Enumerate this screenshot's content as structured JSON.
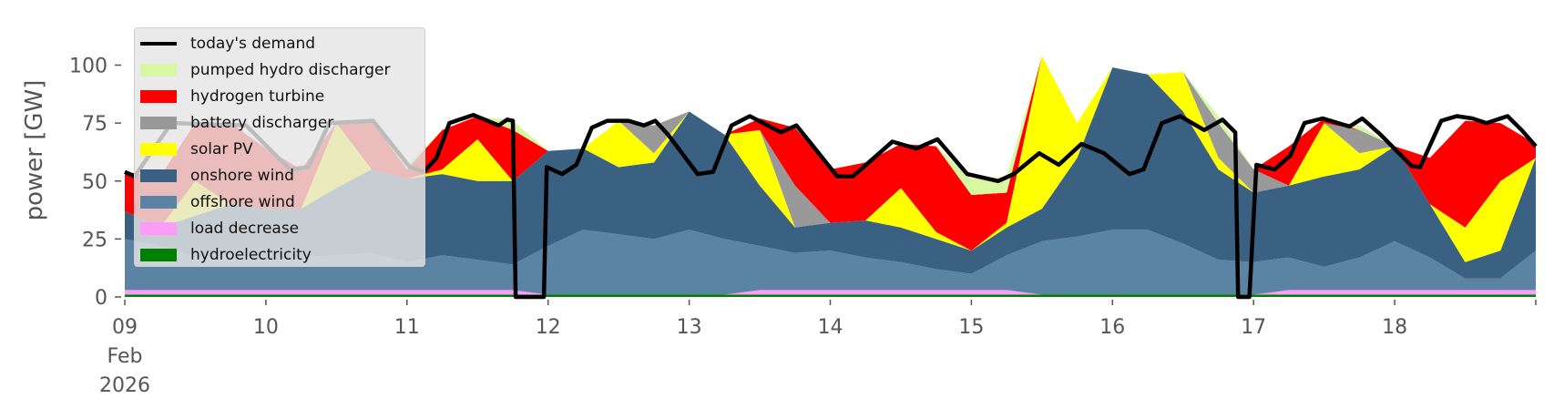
{
  "chart_data": {
    "type": "area",
    "stacked": true,
    "ylabel": "power [GW]",
    "xlabel": "",
    "xlim": [
      9,
      19
    ],
    "ylim": [
      0,
      116
    ],
    "yticks": [
      0,
      25,
      50,
      75,
      100
    ],
    "xticks": [
      {
        "value": 9,
        "label": "09",
        "sub1": "Feb",
        "sub2": "2026"
      },
      {
        "value": 10,
        "label": "10"
      },
      {
        "value": 11,
        "label": "11"
      },
      {
        "value": 12,
        "label": "12"
      },
      {
        "value": 13,
        "label": "13"
      },
      {
        "value": 14,
        "label": "14"
      },
      {
        "value": 15,
        "label": "15"
      },
      {
        "value": 16,
        "label": "16"
      },
      {
        "value": 17,
        "label": "17"
      },
      {
        "value": 18,
        "label": "18"
      }
    ],
    "legend_position": "top-left",
    "x": [
      9,
      9.25,
      9.5,
      9.75,
      10,
      10.25,
      10.5,
      10.75,
      11,
      11.25,
      11.5,
      11.75,
      12,
      12.25,
      12.5,
      12.75,
      13,
      13.25,
      13.5,
      13.75,
      14,
      14.25,
      14.5,
      14.75,
      15,
      15.25,
      15.5,
      15.75,
      16,
      16.25,
      16.5,
      16.75,
      17,
      17.25,
      17.5,
      17.75,
      18,
      18.25,
      18.5,
      18.75,
      19
    ],
    "series": [
      {
        "name": "hydroelectricity",
        "color": "#008000",
        "values": [
          1,
          1,
          1,
          1,
          1,
          1,
          1,
          1,
          1,
          1,
          1,
          1,
          1,
          1,
          1,
          1,
          1,
          1,
          1,
          1,
          1,
          1,
          1,
          1,
          1,
          1,
          1,
          1,
          1,
          1,
          1,
          1,
          1,
          1,
          1,
          1,
          1,
          1,
          1,
          1,
          1
        ]
      },
      {
        "name": "load decrease",
        "color": "#fb9cf7",
        "values": [
          2,
          2,
          2,
          2,
          2,
          2,
          2,
          2,
          2,
          2,
          2,
          2,
          0,
          0,
          0,
          0,
          0,
          0,
          2,
          2,
          2,
          2,
          2,
          2,
          2,
          2,
          0,
          0,
          0,
          0,
          0,
          0,
          0,
          2,
          2,
          2,
          2,
          2,
          2,
          2,
          2
        ]
      },
      {
        "name": "offshore wind",
        "color": "#5b83a4",
        "values": [
          22,
          19,
          14,
          15,
          13,
          14,
          15,
          16,
          12,
          15,
          13,
          11,
          21,
          28,
          26,
          24,
          28,
          24,
          19,
          16,
          17,
          14,
          12,
          9,
          7,
          15,
          23,
          25,
          28,
          28,
          22,
          15,
          14,
          14,
          10,
          14,
          21,
          14,
          5,
          5,
          17
        ]
      },
      {
        "name": "onshore wind",
        "color": "#3b6182",
        "values": [
          12,
          8,
          18,
          22,
          22,
          21,
          29,
          36,
          36,
          35,
          34,
          36,
          41,
          35,
          29,
          33,
          51,
          45,
          26,
          11,
          12,
          16,
          15,
          13,
          10,
          12,
          14,
          34,
          70,
          67,
          57,
          39,
          30,
          31,
          39,
          38,
          41,
          23,
          7,
          12,
          40
        ]
      },
      {
        "name": "solar PV",
        "color": "#ffff00",
        "values": [
          0,
          0,
          15,
          0,
          0,
          0,
          28,
          0,
          0,
          2,
          18,
          0,
          0,
          0,
          20,
          4,
          0,
          0,
          24,
          0,
          0,
          0,
          17,
          3,
          0,
          2,
          66,
          15,
          0,
          0,
          17,
          5,
          0,
          0,
          23,
          7,
          0,
          0,
          15,
          30,
          0
        ]
      },
      {
        "name": "battery discharger",
        "color": "#999999",
        "values": [
          0,
          0,
          0,
          0,
          0,
          0,
          0,
          0,
          0,
          0,
          0,
          0,
          0,
          0,
          0,
          12,
          0,
          0,
          0,
          18,
          0,
          0,
          0,
          0,
          0,
          0,
          0,
          0,
          0,
          0,
          0,
          15,
          10,
          0,
          0,
          10,
          0,
          0,
          0,
          0,
          0
        ]
      },
      {
        "name": "hydrogen turbine",
        "color": "#ff0000",
        "values": [
          17,
          22,
          25,
          35,
          26,
          17,
          0,
          21,
          4,
          17,
          10,
          22,
          0,
          0,
          0,
          0,
          0,
          0,
          5,
          25,
          23,
          25,
          19,
          37,
          24,
          13,
          0,
          0,
          0,
          0,
          0,
          0,
          0,
          17,
          2,
          0,
          0,
          20,
          46,
          25,
          6
        ]
      },
      {
        "name": "pumped hydro discharger",
        "color": "#d9f7a3",
        "values": [
          0,
          0,
          0,
          0,
          0,
          0,
          0,
          0,
          2,
          0,
          0,
          4,
          0,
          0,
          0,
          0,
          0,
          0,
          0,
          0,
          0,
          0,
          0,
          0,
          7,
          7,
          0,
          0,
          0,
          0,
          0,
          3,
          0,
          0,
          0,
          2,
          0,
          0,
          0,
          0,
          0
        ]
      }
    ],
    "demand": {
      "name": "today's demand",
      "color": "#000000",
      "x": [
        9,
        9.07,
        9.33,
        9.86,
        10.17,
        10.3,
        10.45,
        10.76,
        11.02,
        11.12,
        11.21,
        11.3,
        11.47,
        11.65,
        11.71,
        11.75,
        11.77,
        11.97,
        11.99,
        12.1,
        12.2,
        12.31,
        12.42,
        12.57,
        12.68,
        12.76,
        12.85,
        13.06,
        13.17,
        13.3,
        13.43,
        13.65,
        13.76,
        14.05,
        14.16,
        14.44,
        14.61,
        14.76,
        14.97,
        15.19,
        15.3,
        15.48,
        15.62,
        15.78,
        15.94,
        16.12,
        16.22,
        16.35,
        16.48,
        16.65,
        16.78,
        16.87,
        16.89,
        16.97,
        17.02,
        17.15,
        17.26,
        17.36,
        17.49,
        17.68,
        17.77,
        17.9,
        18.12,
        18.18,
        18.33,
        18.44,
        18.55,
        18.65,
        18.8,
        18.9,
        19
      ],
      "y": [
        54,
        52,
        75,
        74,
        55,
        56,
        75,
        76,
        56,
        54,
        60,
        75,
        78.5,
        74,
        76.5,
        76,
        0,
        0,
        56,
        53,
        57,
        73,
        76,
        76,
        74,
        76,
        70,
        53,
        54,
        74,
        78,
        71,
        74,
        52,
        52,
        67,
        64,
        68,
        53,
        50,
        53,
        62,
        57,
        66,
        62,
        53,
        55,
        75,
        78,
        72,
        76.5,
        71,
        0,
        0,
        57,
        55,
        61,
        75,
        77,
        73.5,
        77,
        70,
        56.5,
        56,
        76,
        78,
        77,
        75,
        78,
        72,
        65
      ]
    }
  },
  "legend": {
    "items": [
      {
        "label": "today's demand",
        "color": "#000000"
      },
      {
        "label": "pumped hydro discharger",
        "color": "#d9f7a3"
      },
      {
        "label": "hydrogen turbine",
        "color": "#ff0000"
      },
      {
        "label": "battery discharger",
        "color": "#999999"
      },
      {
        "label": "solar PV",
        "color": "#ffff00"
      },
      {
        "label": "onshore wind",
        "color": "#3b6182"
      },
      {
        "label": "offshore wind",
        "color": "#5b83a4"
      },
      {
        "label": "load decrease",
        "color": "#fb9cf7"
      },
      {
        "label": "hydroelectricity",
        "color": "#008000"
      }
    ]
  }
}
